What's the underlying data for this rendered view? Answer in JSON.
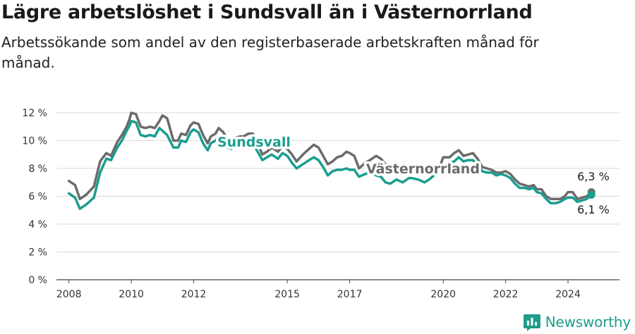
{
  "header": {
    "title": "Lägre arbetslöshet i Sundsvall än i Västernorrland",
    "subtitle": "Arbetssökande som andel av den registerbaserade arbetskraften månad för månad."
  },
  "brand": {
    "name": "Newsworthy",
    "icon": "newsworthy-logo-icon",
    "color": "#1f9d8a"
  },
  "chart_data": {
    "type": "line",
    "title": "Lägre arbetslöshet i Sundsvall än i Västernorrland",
    "subtitle": "Arbetssökande som andel av den registerbaserade arbetskraften månad för månad.",
    "xlabel": "",
    "ylabel": "",
    "xlim": [
      2007.6,
      2025.65
    ],
    "ylim": [
      0,
      12
    ],
    "y_ticks": [
      {
        "value": 0,
        "label": "0 %"
      },
      {
        "value": 2,
        "label": "2 %"
      },
      {
        "value": 4,
        "label": "4 %"
      },
      {
        "value": 6,
        "label": "6 %"
      },
      {
        "value": 8,
        "label": "8 %"
      },
      {
        "value": 10,
        "label": "10 %"
      },
      {
        "value": 12,
        "label": "12 %"
      }
    ],
    "x_ticks": [
      {
        "value": 2008,
        "label": "2008"
      },
      {
        "value": 2010,
        "label": "2010"
      },
      {
        "value": 2012,
        "label": "2012"
      },
      {
        "value": 2015,
        "label": "2015"
      },
      {
        "value": 2017,
        "label": "2017"
      },
      {
        "value": 2020,
        "label": "2020"
      },
      {
        "value": 2022,
        "label": "2022"
      },
      {
        "value": 2024,
        "label": "2024"
      }
    ],
    "grid": true,
    "legend": "direct-labels",
    "series": [
      {
        "name": "Västernorrland",
        "color": "#6b6b6b",
        "end_label": "6,3 %",
        "end_value": 6.3,
        "x": [
          2008.0,
          2008.2,
          2008.35,
          2008.55,
          2008.8,
          2009.0,
          2009.2,
          2009.35,
          2009.55,
          2009.7,
          2009.85,
          2009.95,
          2010.0,
          2010.15,
          2010.3,
          2010.45,
          2010.6,
          2010.75,
          2010.9,
          2011.0,
          2011.15,
          2011.35,
          2011.5,
          2011.6,
          2011.75,
          2011.9,
          2012.0,
          2012.15,
          2012.3,
          2012.45,
          2012.55,
          2012.7,
          2012.8,
          2012.95,
          2013.1,
          2013.2,
          2013.35,
          2013.5,
          2013.6,
          2013.75,
          2013.9,
          2014.0,
          2014.2,
          2014.35,
          2014.5,
          2014.7,
          2014.85,
          2015.0,
          2015.15,
          2015.3,
          2015.5,
          2015.7,
          2015.85,
          2016.0,
          2016.15,
          2016.3,
          2016.45,
          2016.6,
          2016.75,
          2016.9,
          2017.0,
          2017.15,
          2017.3,
          2017.5,
          2017.65,
          2017.85,
          2018.0,
          2018.15,
          2018.3,
          2018.5,
          2018.7,
          2018.9,
          2019.0,
          2019.2,
          2019.4,
          2019.55,
          2019.7,
          2019.9,
          2020.0,
          2020.2,
          2020.35,
          2020.5,
          2020.65,
          2020.8,
          2020.95,
          2021.1,
          2021.25,
          2021.4,
          2021.55,
          2021.7,
          2021.85,
          2022.0,
          2022.15,
          2022.3,
          2022.45,
          2022.6,
          2022.75,
          2022.9,
          2023.0,
          2023.15,
          2023.3,
          2023.45,
          2023.6,
          2023.75,
          2023.9,
          2024.0,
          2024.15,
          2024.3,
          2024.45,
          2024.6,
          2024.75
        ],
        "values": [
          7.1,
          6.8,
          5.8,
          6.1,
          6.7,
          8.5,
          9.1,
          8.9,
          9.9,
          10.4,
          11.0,
          11.6,
          12.0,
          11.9,
          11.0,
          10.9,
          11.0,
          10.9,
          11.4,
          11.8,
          11.6,
          10.0,
          10.0,
          10.5,
          10.4,
          11.1,
          11.3,
          11.2,
          10.4,
          9.8,
          10.3,
          10.5,
          10.9,
          10.6,
          10.0,
          9.8,
          10.2,
          10.3,
          10.3,
          10.5,
          10.5,
          10.1,
          9.0,
          9.2,
          9.5,
          9.2,
          9.6,
          9.4,
          9.0,
          8.5,
          9.0,
          9.4,
          9.7,
          9.5,
          8.9,
          8.3,
          8.5,
          8.8,
          8.9,
          9.2,
          9.1,
          8.9,
          8.0,
          8.4,
          8.6,
          8.9,
          8.7,
          8.3,
          7.9,
          8.0,
          8.0,
          7.8,
          8.2,
          8.0,
          7.9,
          7.9,
          8.1,
          8.2,
          8.8,
          8.8,
          9.1,
          9.3,
          8.9,
          9.0,
          9.1,
          8.7,
          8.1,
          8.0,
          7.9,
          7.7,
          7.7,
          7.8,
          7.6,
          7.2,
          6.9,
          6.8,
          6.7,
          6.8,
          6.5,
          6.5,
          6.0,
          5.8,
          5.8,
          5.8,
          6.0,
          6.3,
          6.3,
          5.8,
          5.9,
          6.0,
          6.3
        ]
      },
      {
        "name": "Sundsvall",
        "color": "#1a9e8f",
        "end_label": "6,1 %",
        "end_value": 6.1,
        "x": [
          2008.0,
          2008.2,
          2008.35,
          2008.55,
          2008.8,
          2009.0,
          2009.2,
          2009.35,
          2009.55,
          2009.7,
          2009.85,
          2009.95,
          2010.0,
          2010.15,
          2010.3,
          2010.45,
          2010.6,
          2010.75,
          2010.9,
          2011.0,
          2011.15,
          2011.35,
          2011.5,
          2011.6,
          2011.75,
          2011.9,
          2012.0,
          2012.15,
          2012.3,
          2012.45,
          2012.55,
          2012.7,
          2012.8,
          2012.95,
          2013.1,
          2013.2,
          2013.35,
          2013.5,
          2013.6,
          2013.75,
          2013.9,
          2014.0,
          2014.2,
          2014.35,
          2014.5,
          2014.7,
          2014.85,
          2015.0,
          2015.15,
          2015.3,
          2015.5,
          2015.7,
          2015.85,
          2016.0,
          2016.15,
          2016.3,
          2016.45,
          2016.6,
          2016.75,
          2016.9,
          2017.0,
          2017.15,
          2017.3,
          2017.5,
          2017.65,
          2017.85,
          2018.0,
          2018.15,
          2018.3,
          2018.5,
          2018.7,
          2018.9,
          2019.0,
          2019.2,
          2019.4,
          2019.55,
          2019.7,
          2019.9,
          2020.0,
          2020.2,
          2020.35,
          2020.5,
          2020.65,
          2020.8,
          2020.95,
          2021.1,
          2021.25,
          2021.4,
          2021.55,
          2021.7,
          2021.85,
          2022.0,
          2022.15,
          2022.3,
          2022.45,
          2022.6,
          2022.75,
          2022.9,
          2023.0,
          2023.15,
          2023.3,
          2023.45,
          2023.6,
          2023.75,
          2023.9,
          2024.0,
          2024.15,
          2024.3,
          2024.45,
          2024.6,
          2024.75
        ],
        "values": [
          6.2,
          5.9,
          5.1,
          5.4,
          5.9,
          7.7,
          8.7,
          8.6,
          9.5,
          10.0,
          10.7,
          11.1,
          11.4,
          11.3,
          10.4,
          10.3,
          10.4,
          10.3,
          10.9,
          10.7,
          10.4,
          9.5,
          9.5,
          10.0,
          9.9,
          10.6,
          10.8,
          10.6,
          9.8,
          9.3,
          9.8,
          10.0,
          10.3,
          10.0,
          9.5,
          9.4,
          9.8,
          9.8,
          9.8,
          10.0,
          9.9,
          9.4,
          8.6,
          8.8,
          9.0,
          8.7,
          9.1,
          8.9,
          8.4,
          8.0,
          8.3,
          8.6,
          8.8,
          8.6,
          8.1,
          7.5,
          7.8,
          7.9,
          7.9,
          8.0,
          7.9,
          7.9,
          7.4,
          7.6,
          7.7,
          7.5,
          7.4,
          7.0,
          6.9,
          7.2,
          7.0,
          7.3,
          7.3,
          7.2,
          7.0,
          7.2,
          7.5,
          7.8,
          8.1,
          8.4,
          8.5,
          8.8,
          8.5,
          8.6,
          8.6,
          8.3,
          7.8,
          7.7,
          7.7,
          7.5,
          7.6,
          7.5,
          7.3,
          6.9,
          6.6,
          6.6,
          6.5,
          6.6,
          6.3,
          6.2,
          5.8,
          5.5,
          5.5,
          5.6,
          5.8,
          5.9,
          5.9,
          5.6,
          5.7,
          5.8,
          6.1
        ]
      }
    ],
    "annotations": [
      {
        "text": "Sundsvall",
        "series": "Sundsvall"
      },
      {
        "text": "Västernorrland",
        "series": "Västernorrland"
      },
      {
        "text": "6,3 %",
        "series": "Västernorrland"
      },
      {
        "text": "6,1 %",
        "series": "Sundsvall"
      }
    ]
  }
}
